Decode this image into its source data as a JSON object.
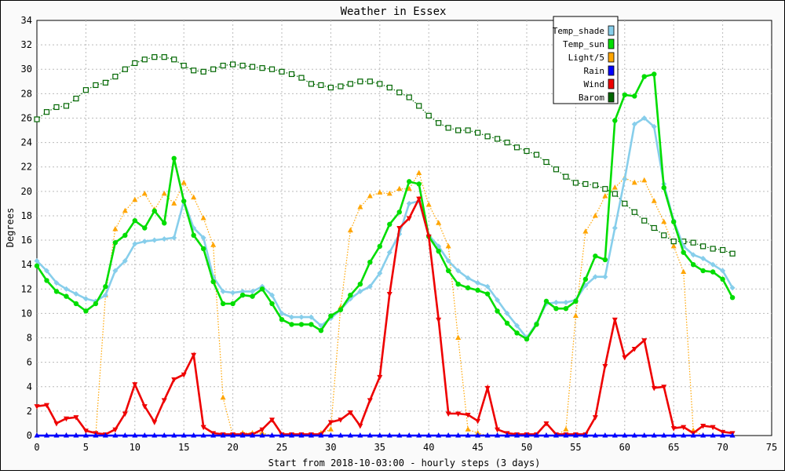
{
  "chart_data": {
    "type": "line",
    "title": "Weather in Essex",
    "xlabel": "Start from 2018-10-03:00 - hourly steps (3 days)",
    "ylabel": "Degrees",
    "xlim": [
      0,
      75
    ],
    "ylim": [
      0,
      34
    ],
    "x_ticks": [
      0,
      5,
      10,
      15,
      20,
      25,
      30,
      35,
      40,
      45,
      50,
      55,
      60,
      65,
      70,
      75
    ],
    "y_ticks": [
      0,
      2,
      4,
      6,
      8,
      10,
      12,
      14,
      16,
      18,
      20,
      22,
      24,
      26,
      28,
      30,
      32,
      34
    ],
    "grid": true,
    "legend_position": "top-right",
    "series": [
      {
        "name": "Temp_shade",
        "color": "#87ceeb",
        "style": "solid",
        "marker": "diamond",
        "values": [
          14.3,
          13.5,
          12.5,
          12.0,
          11.6,
          11.2,
          11.0,
          11.5,
          13.5,
          14.3,
          15.7,
          15.9,
          16.0,
          16.1,
          16.2,
          19.2,
          17.0,
          16.2,
          13.0,
          11.8,
          11.7,
          11.8,
          11.8,
          12.2,
          11.5,
          10.0,
          9.7,
          9.7,
          9.7,
          9.0,
          9.6,
          10.3,
          11.2,
          11.8,
          12.2,
          13.3,
          15.0,
          16.5,
          19.0,
          19.2,
          16.4,
          15.5,
          14.3,
          13.5,
          12.9,
          12.5,
          12.2,
          11.1,
          10.0,
          9.0,
          8.0,
          9.2,
          10.8,
          10.9,
          10.9,
          11.1,
          12.3,
          13.0,
          13.0,
          17.0,
          21.0,
          25.5,
          26.0,
          25.3,
          20.6,
          17.6,
          15.5,
          14.8,
          14.5,
          14.0,
          13.5,
          12.1
        ]
      },
      {
        "name": "Temp_sun",
        "color": "#00dd00",
        "style": "solid",
        "marker": "circle",
        "values": [
          13.9,
          12.7,
          11.8,
          11.4,
          10.8,
          10.2,
          10.8,
          12.2,
          15.8,
          16.4,
          17.6,
          17.0,
          18.4,
          17.4,
          22.7,
          19.2,
          16.4,
          15.3,
          12.6,
          10.8,
          10.8,
          11.5,
          11.4,
          12.0,
          10.8,
          9.5,
          9.1,
          9.1,
          9.1,
          8.6,
          9.8,
          10.3,
          11.5,
          12.4,
          14.2,
          15.5,
          17.3,
          18.3,
          20.8,
          20.6,
          16.3,
          15.1,
          13.5,
          12.4,
          12.1,
          11.9,
          11.6,
          10.2,
          9.2,
          8.4,
          7.9,
          9.1,
          11.0,
          10.4,
          10.4,
          11.0,
          12.8,
          14.7,
          14.4,
          25.8,
          27.9,
          27.8,
          29.4,
          29.6,
          20.3,
          17.5,
          15.0,
          14.0,
          13.5,
          13.4,
          12.8,
          11.3
        ]
      },
      {
        "name": "Light/5",
        "color": "#ffa500",
        "style": "dotted",
        "marker": "triangle-up",
        "values": [
          0,
          0,
          0,
          0,
          0,
          0,
          0,
          11.5,
          16.9,
          18.4,
          19.3,
          19.8,
          18.5,
          19.8,
          19.0,
          20.7,
          19.5,
          17.8,
          15.6,
          3.1,
          0,
          0.2,
          0.2,
          0.2,
          0,
          0,
          0,
          0,
          0,
          0.2,
          0.5,
          10.5,
          16.8,
          18.7,
          19.6,
          19.9,
          19.8,
          20.2,
          20.2,
          21.5,
          18.9,
          17.4,
          15.5,
          8.0,
          0.5,
          0.2,
          0,
          0,
          0,
          0,
          0,
          0,
          0,
          0,
          0.5,
          9.8,
          16.7,
          18.0,
          19.6,
          20.3,
          21.1,
          20.7,
          20.9,
          19.2,
          17.5,
          15.5,
          13.4,
          0.4,
          0,
          0,
          0,
          0
        ]
      },
      {
        "name": "Rain",
        "color": "#0000ff",
        "style": "solid",
        "marker": "triangle-up",
        "values": [
          0,
          0,
          0,
          0,
          0,
          0,
          0,
          0,
          0,
          0,
          0,
          0,
          0,
          0,
          0,
          0,
          0,
          0,
          0,
          0,
          0,
          0,
          0,
          0,
          0,
          0,
          0,
          0,
          0,
          0,
          0,
          0,
          0,
          0,
          0,
          0,
          0,
          0,
          0,
          0,
          0,
          0,
          0,
          0,
          0,
          0,
          0,
          0,
          0,
          0,
          0,
          0,
          0,
          0,
          0,
          0,
          0,
          0,
          0,
          0,
          0,
          0,
          0,
          0,
          0,
          0,
          0,
          0,
          0,
          0,
          0,
          0
        ]
      },
      {
        "name": "Wind",
        "color": "#ee0000",
        "style": "solid",
        "marker": "triangle-down",
        "values": [
          2.4,
          2.5,
          1.0,
          1.4,
          1.5,
          0.4,
          0.2,
          0.1,
          0.5,
          1.8,
          4.2,
          2.4,
          1.1,
          2.9,
          4.6,
          5.0,
          6.6,
          0.7,
          0.2,
          0.1,
          0.1,
          0.1,
          0.1,
          0.5,
          1.3,
          0.1,
          0.1,
          0.1,
          0.1,
          0.1,
          1.1,
          1.3,
          1.9,
          0.8,
          2.9,
          4.8,
          11.6,
          17.0,
          17.8,
          19.4,
          16.3,
          9.5,
          1.8,
          1.8,
          1.7,
          1.2,
          3.9,
          0.5,
          0.2,
          0.1,
          0.1,
          0.1,
          1.0,
          0.1,
          0.1,
          0.1,
          0.1,
          1.5,
          5.7,
          9.5,
          6.4,
          7.1,
          7.8,
          3.9,
          4.0,
          0.6,
          0.7,
          0.2,
          0.8,
          0.7,
          0.3,
          0.2
        ]
      },
      {
        "name": "Barom",
        "color": "#006600",
        "style": "dotted",
        "marker": "square",
        "values": [
          25.9,
          26.5,
          26.9,
          27.0,
          27.6,
          28.3,
          28.7,
          28.9,
          29.4,
          30.0,
          30.5,
          30.8,
          31.0,
          31.0,
          30.8,
          30.3,
          29.9,
          29.8,
          30.0,
          30.3,
          30.4,
          30.3,
          30.2,
          30.1,
          30.0,
          29.8,
          29.6,
          29.3,
          28.8,
          28.7,
          28.5,
          28.6,
          28.8,
          29.0,
          29.0,
          28.8,
          28.5,
          28.1,
          27.7,
          27.0,
          26.2,
          25.6,
          25.2,
          25.0,
          25.0,
          24.8,
          24.5,
          24.3,
          24.0,
          23.6,
          23.3,
          23.0,
          22.4,
          21.8,
          21.2,
          20.7,
          20.6,
          20.5,
          20.2,
          19.8,
          19.0,
          18.3,
          17.6,
          17.0,
          16.4,
          15.9,
          15.9,
          15.8,
          15.5,
          15.3,
          15.2,
          14.9
        ]
      }
    ]
  }
}
